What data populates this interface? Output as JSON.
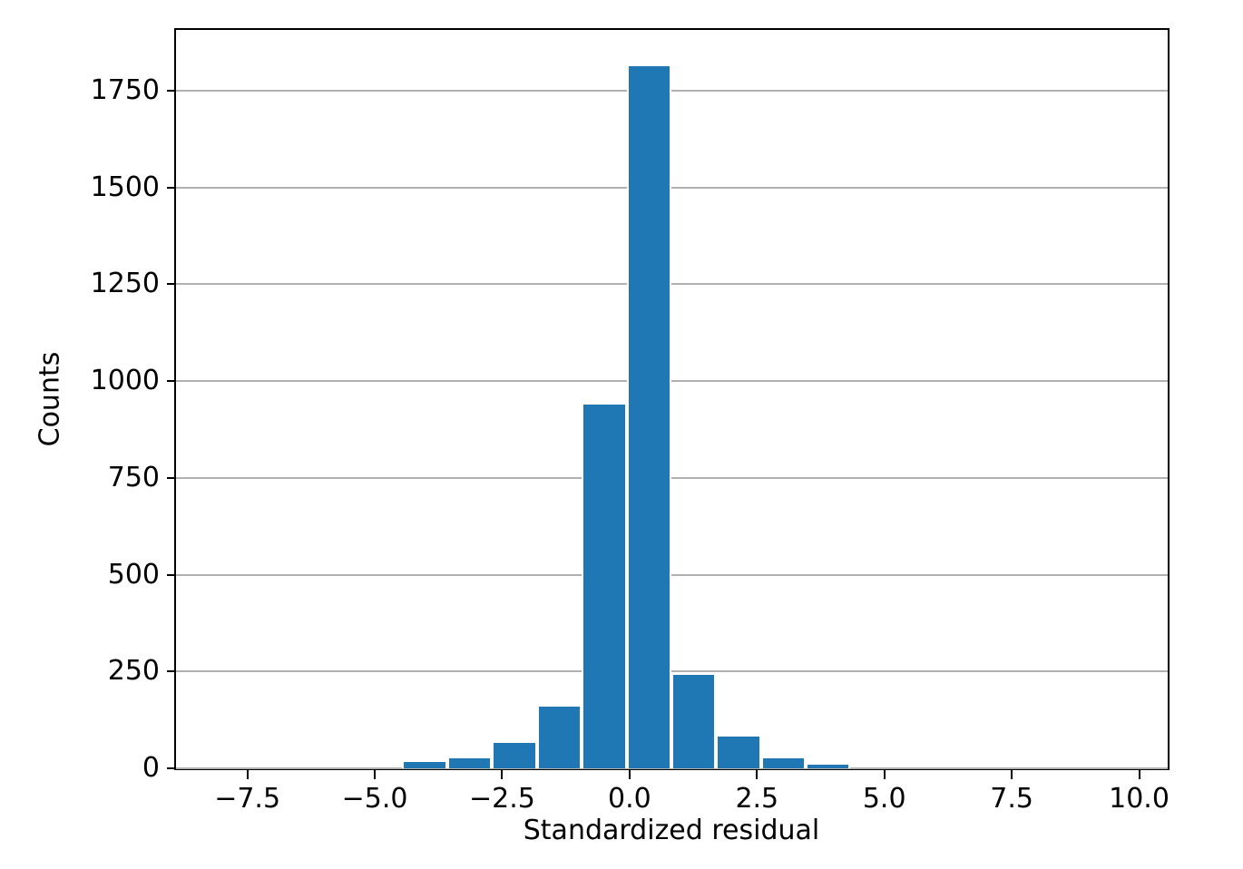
{
  "chart_data": {
    "type": "bar",
    "subtype": "histogram",
    "title": "",
    "xlabel": "Standardized residual",
    "ylabel": "Counts",
    "bin_edges": [
      -4.46,
      -3.58,
      -2.7,
      -1.82,
      -0.94,
      -0.06,
      0.82,
      1.7,
      2.58,
      3.45,
      4.33
    ],
    "counts": [
      17,
      26,
      66,
      160,
      940,
      1813,
      242,
      83,
      26,
      10
    ],
    "xlim": [
      -8.9,
      10.56
    ],
    "ylim": [
      0,
      1907
    ],
    "x_ticks": [
      -7.5,
      -5.0,
      -2.5,
      0.0,
      2.5,
      5.0,
      7.5,
      10.0
    ],
    "x_tick_labels": [
      "−7.5",
      "−5.0",
      "−2.5",
      "0.0",
      "2.5",
      "5.0",
      "7.5",
      "10.0"
    ],
    "y_ticks": [
      0,
      250,
      500,
      750,
      1000,
      1250,
      1500,
      1750
    ],
    "y_tick_labels": [
      "0",
      "250",
      "500",
      "750",
      "1000",
      "1250",
      "1500",
      "1750"
    ],
    "grid": "horizontal-only",
    "legend_position": "none",
    "colors": {
      "bar_fill": "#1f77b4",
      "bar_edge": "#ffffff",
      "gridline": "#b0b0b0",
      "spine": "#000000",
      "text": "#000000",
      "background": "#ffffff"
    }
  }
}
